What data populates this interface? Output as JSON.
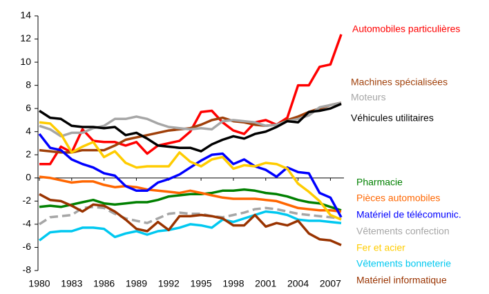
{
  "chart_data": {
    "type": "line",
    "x": [
      1980,
      1981,
      1982,
      1983,
      1984,
      1985,
      1986,
      1987,
      1988,
      1989,
      1990,
      1991,
      1992,
      1993,
      1994,
      1995,
      1996,
      1997,
      1998,
      1999,
      2000,
      2001,
      2002,
      2003,
      2004,
      2005,
      2006,
      2007,
      2008
    ],
    "xlim": [
      1980,
      2008
    ],
    "xticks": [
      1980,
      1983,
      1986,
      1989,
      1992,
      1995,
      1998,
      2001,
      2004,
      2007
    ],
    "ylim": [
      -8,
      14
    ],
    "yticks": [
      -8,
      -6,
      -4,
      -2,
      0,
      2,
      4,
      6,
      8,
      10,
      12,
      14
    ],
    "grid": false,
    "series": [
      {
        "name": "Automobiles particulières",
        "color": "#ff0000",
        "values": [
          1.2,
          1.2,
          2.7,
          2.2,
          4.2,
          3.2,
          3.1,
          3.1,
          2.8,
          3.1,
          2.1,
          2.8,
          3.0,
          3.2,
          4.0,
          5.7,
          5.8,
          4.8,
          4.1,
          3.8,
          4.8,
          5.0,
          4.6,
          5.2,
          8.0,
          8.0,
          9.6,
          9.8,
          12.4
        ]
      },
      {
        "name": "Machines spécialisées",
        "color": "#a0400a",
        "values": [
          2.4,
          2.3,
          2.2,
          2.2,
          2.4,
          2.4,
          2.4,
          2.8,
          3.3,
          3.5,
          3.7,
          3.9,
          4.1,
          4.2,
          4.3,
          4.6,
          5.0,
          5.2,
          4.9,
          4.8,
          4.6,
          4.5,
          4.6,
          5.0,
          5.3,
          5.7,
          6.0,
          6.3,
          6.5
        ]
      },
      {
        "name": "Moteurs",
        "color": "#a6a6a6",
        "values": [
          4.5,
          4.2,
          3.6,
          3.9,
          3.9,
          4.3,
          4.5,
          5.1,
          5.1,
          5.3,
          5.1,
          4.7,
          4.4,
          4.3,
          4.2,
          4.3,
          4.2,
          4.9,
          5.0,
          4.9,
          4.8,
          4.5,
          4.6,
          4.9,
          5.1,
          5.4,
          6.1,
          6.3,
          6.5
        ]
      },
      {
        "name": "Véhicules utilitaires",
        "color": "#000000",
        "values": [
          5.8,
          5.2,
          5.1,
          4.5,
          4.4,
          4.4,
          4.3,
          4.4,
          3.7,
          3.9,
          3.4,
          2.8,
          2.7,
          2.6,
          2.6,
          2.3,
          2.9,
          3.3,
          3.6,
          3.4,
          3.8,
          4.0,
          4.4,
          4.9,
          4.8,
          5.7,
          5.8,
          6.0,
          6.4
        ]
      },
      {
        "name": "Pharmacie",
        "color": "#008000",
        "values": [
          -2.5,
          -2.4,
          -2.5,
          -2.3,
          -2.1,
          -1.9,
          -2.2,
          -2.3,
          -2.2,
          -2.1,
          -2.1,
          -1.9,
          -1.6,
          -1.5,
          -1.4,
          -1.4,
          -1.3,
          -1.1,
          -1.1,
          -1.0,
          -1.1,
          -1.3,
          -1.4,
          -1.6,
          -1.9,
          -2.1,
          -2.2,
          -2.5,
          -2.8
        ]
      },
      {
        "name": "Pièces automobiles",
        "color": "#ff6600",
        "values": [
          0.1,
          0,
          -0.2,
          -0.4,
          -0.3,
          -0.3,
          -0.6,
          -0.8,
          -0.7,
          -0.8,
          -1.0,
          -1.1,
          -1.2,
          -1.3,
          -1.1,
          -1.3,
          -1.5,
          -1.7,
          -1.8,
          -1.8,
          -1.8,
          -1.9,
          -2.0,
          -2.3,
          -2.6,
          -2.7,
          -2.8,
          -2.8,
          -2.9
        ]
      },
      {
        "name": "Matériel de télécomunic.",
        "color": "#0000ff",
        "values": [
          3.8,
          2.6,
          2.4,
          1.6,
          1.2,
          0.9,
          0.4,
          0.2,
          -0.7,
          -1.1,
          -1.1,
          -0.4,
          -0.1,
          0.3,
          0.9,
          1.5,
          2.0,
          2.1,
          1.2,
          1.6,
          1.0,
          0.7,
          0.1,
          0.9,
          0.5,
          0.4,
          -1.3,
          -1.7,
          -3.4
        ]
      },
      {
        "name": "Vêtements confection",
        "color": "#a6a6a6",
        "style": "dashed",
        "values": [
          -4.0,
          -3.4,
          -3.3,
          -3.2,
          -2.6,
          -2.5,
          -2.6,
          -3.1,
          -3.5,
          -3.7,
          -3.9,
          -3.5,
          -3.1,
          -3.0,
          -3.1,
          -3.1,
          -3.3,
          -3.4,
          -3.2,
          -3.0,
          -2.7,
          -2.6,
          -2.7,
          -2.9,
          -3.1,
          -3.2,
          -3.3,
          -3.4,
          -3.5
        ]
      },
      {
        "name": "Fer et acier",
        "color": "#ffcc00",
        "values": [
          4.8,
          4.7,
          3.8,
          2.2,
          2.7,
          3.1,
          1.8,
          2.3,
          1.3,
          0.9,
          1.0,
          1.0,
          1.0,
          2.2,
          1.4,
          1.0,
          1.6,
          1.8,
          0.8,
          1.1,
          1.0,
          1.3,
          1.2,
          0.8,
          -0.5,
          -1.2,
          -2.0,
          -3.2,
          -3.6
        ]
      },
      {
        "name": "Vêtements bonneterie",
        "color": "#00c8f0",
        "values": [
          -5.4,
          -4.7,
          -4.6,
          -4.6,
          -4.3,
          -4.3,
          -4.4,
          -5.1,
          -4.8,
          -4.6,
          -4.9,
          -4.6,
          -4.5,
          -4.3,
          -4.0,
          -4.1,
          -4.3,
          -3.6,
          -3.8,
          -3.5,
          -3.2,
          -2.9,
          -3.0,
          -3.2,
          -3.6,
          -3.7,
          -3.7,
          -3.8,
          -3.9
        ]
      },
      {
        "name": "Matériel informatique",
        "color": "#993300",
        "values": [
          -1.4,
          -1.9,
          -2.0,
          -2.4,
          -2.9,
          -2.3,
          -2.4,
          -2.9,
          -3.6,
          -4.4,
          -4.6,
          -3.8,
          -4.5,
          -3.3,
          -3.3,
          -3.2,
          -3.3,
          -3.5,
          -4.1,
          -4.1,
          -3.2,
          -4.2,
          -3.9,
          -4.1,
          -3.7,
          -4.8,
          -5.3,
          -5.4,
          -5.8
        ]
      }
    ]
  }
}
